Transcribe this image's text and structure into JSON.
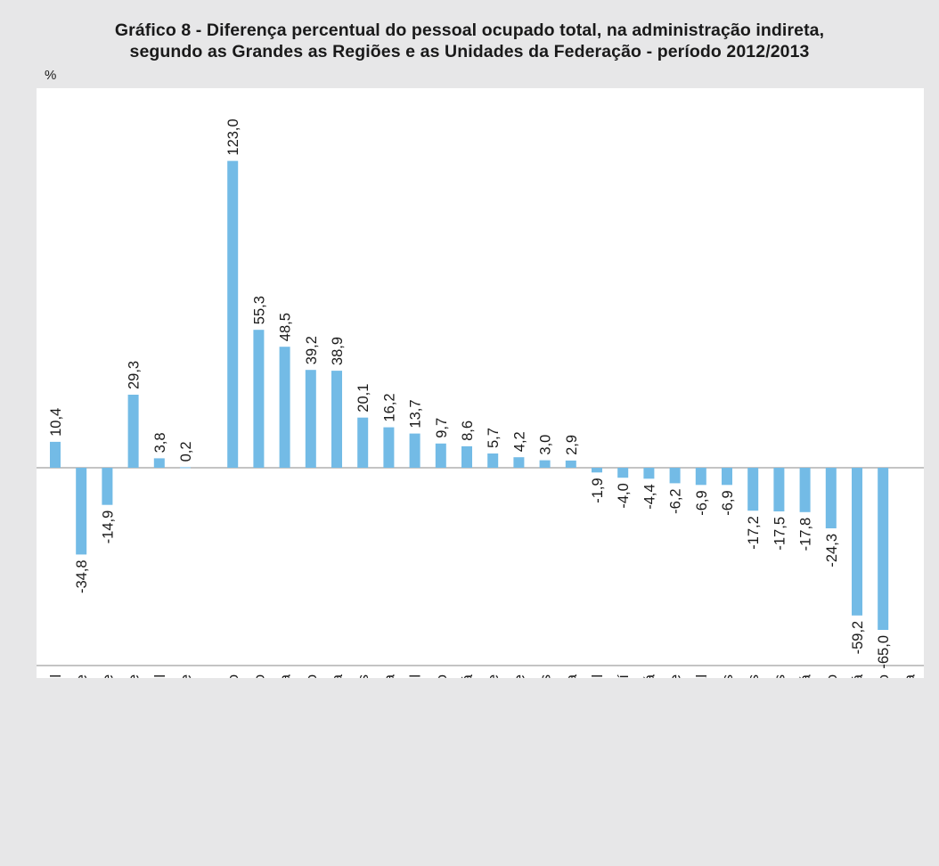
{
  "title_line1": "Gráfico 8 - Diferença percentual do pessoal ocupado total, na administração indireta,",
  "title_line2": "segundo as Grandes as Regiões e as Unidades da Federação - período 2012/2013",
  "unit": "%",
  "colors": {
    "bar": "#73bbe6",
    "axis": "#8a8a8a",
    "background": "#e7e7e8",
    "plot": "#ffffff"
  },
  "chart_data": {
    "type": "bar",
    "title": "Gráfico 8 - Diferença percentual do pessoal ocupado total, na administração indireta, segundo as Grandes as Regiões e as Unidades da Federação - período 2012/2013",
    "ylabel": "%",
    "ylim": [
      -72,
      130
    ],
    "categories": [
      "Brasil",
      "Norte",
      "Nordeste",
      "Sudeste",
      "Sul",
      "Centro-Oeste",
      "Rio de Janeiro",
      "Mato Grosso",
      "Rondônia",
      "Espírito Santo",
      "Santa Catarina",
      "Alagoas",
      "Paraíba",
      "Rio Grande do Sul",
      "São Paulo",
      "Ceará",
      "Sergipe",
      "Acre",
      "Goiás",
      "Bahia",
      "Mato Grosso do Sul",
      "Piauí",
      "Amapá",
      "Rio Grande do Norte",
      "Distrito Federal",
      "Tocantins",
      "Amazonas",
      "Minas Gerais",
      "Paraná",
      "Pernambuco",
      "Pará",
      "Maranhão",
      "Roraima"
    ],
    "values": [
      10.4,
      -34.8,
      -14.9,
      29.3,
      3.8,
      0.2,
      123.0,
      55.3,
      48.5,
      39.2,
      38.9,
      20.1,
      16.2,
      13.7,
      9.7,
      8.6,
      5.7,
      4.2,
      3.0,
      2.9,
      -1.9,
      -4.0,
      -4.4,
      -6.2,
      -6.9,
      -6.9,
      -17.2,
      -17.5,
      -17.8,
      -24.3,
      -59.2,
      -65.0,
      null
    ],
    "data_labels": [
      "10,4",
      "-34,8",
      "-14,9",
      "29,3",
      "3,8",
      "0,2",
      "123,0",
      "55,3",
      "48,5",
      "39,2",
      "38,9",
      "20,1",
      "16,2",
      "13,7",
      "9,7",
      "8,6",
      "5,7",
      "4,2",
      "3,0",
      "2,9",
      "-1,9",
      "-4,0",
      "-4,4",
      "-6,2",
      "-6,9",
      "-6,9",
      "-17,2",
      "-17,5",
      "-17,8",
      "-24,3",
      "-59,2",
      "-65,0",
      ""
    ],
    "grid": false,
    "legend": "none"
  }
}
